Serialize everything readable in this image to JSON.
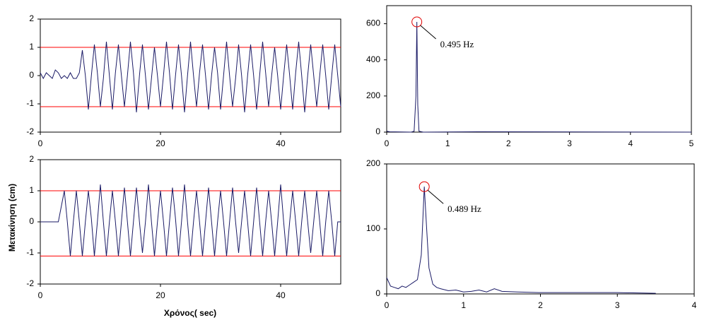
{
  "figure": {
    "ylabel": "Μετακίνηση (cm)",
    "xlabel": "Χρόνος( sec)"
  },
  "chart_data": [
    {
      "type": "line",
      "xlim": [
        0,
        50
      ],
      "ylim": [
        -2,
        2
      ],
      "xticks": [
        0,
        20,
        40
      ],
      "yticks": [
        2,
        1,
        0,
        -1,
        -2
      ],
      "hlines": [
        1,
        -1.1
      ],
      "hline_color": "#ff0000",
      "x": [
        0,
        0.5,
        1,
        1.5,
        2,
        2.5,
        3,
        3.5,
        4,
        4.5,
        5,
        5.5,
        6,
        6.5,
        7,
        7.5,
        8,
        8.5,
        9,
        9.5,
        10,
        10.5,
        11,
        11.5,
        12,
        12.5,
        13,
        13.5,
        14,
        14.5,
        15,
        15.5,
        16,
        16.5,
        17,
        17.5,
        18,
        18.5,
        19,
        19.5,
        20,
        20.5,
        21,
        21.5,
        22,
        22.5,
        23,
        23.5,
        24,
        24.5,
        25,
        25.5,
        26,
        26.5,
        27,
        27.5,
        28,
        28.5,
        29,
        29.5,
        30,
        30.5,
        31,
        31.5,
        32,
        32.5,
        33,
        33.5,
        34,
        34.5,
        35,
        35.5,
        36,
        36.5,
        37,
        37.5,
        38,
        38.5,
        39,
        39.5,
        40,
        40.5,
        41,
        41.5,
        42,
        42.5,
        43,
        43.5,
        44,
        44.5,
        45,
        45.5,
        46,
        46.5,
        47,
        47.5,
        48,
        48.5,
        49,
        49.5,
        50
      ],
      "series": [
        {
          "color": "#1a1a66",
          "values": [
            0.1,
            -0.1,
            0.1,
            0,
            -0.1,
            0.2,
            0.1,
            -0.1,
            0,
            -0.1,
            0.1,
            -0.1,
            -0.1,
            0.1,
            0.9,
            0,
            -1.2,
            0,
            1.1,
            0.1,
            -1.1,
            -0.1,
            1.2,
            0,
            -1.2,
            0.1,
            1.1,
            0,
            -1.1,
            0,
            1.2,
            0.1,
            -1.3,
            0,
            1.1,
            0,
            -1.2,
            -0.1,
            1.0,
            0,
            -1.1,
            0,
            1.2,
            0.1,
            -1.2,
            0,
            1.1,
            0,
            -1.3,
            0,
            1.2,
            0,
            -1.1,
            0.1,
            1.1,
            0,
            -1.2,
            0,
            1.0,
            0.1,
            -1.2,
            0,
            1.2,
            0,
            -1.1,
            -0.1,
            1.1,
            0,
            -1.3,
            0,
            1.1,
            0,
            -1.2,
            0,
            1.2,
            0.1,
            -1.1,
            0,
            1.0,
            0,
            -1.2,
            0,
            1.1,
            0,
            -1.2,
            0.1,
            1.2,
            0,
            -1.3,
            0,
            1.1,
            0,
            -1.1,
            0,
            1.1,
            0,
            -1.2,
            0,
            1.1,
            0,
            -1.1
          ]
        }
      ]
    },
    {
      "type": "line",
      "xlim": [
        0,
        5
      ],
      "ylim": [
        0,
        700
      ],
      "xticks": [
        0,
        1,
        2,
        3,
        4,
        5
      ],
      "yticks": [
        0,
        200,
        400,
        600
      ],
      "x": [
        0,
        0.05,
        0.4,
        0.45,
        0.48,
        0.495,
        0.51,
        0.53,
        0.6,
        1.5,
        5
      ],
      "series": [
        {
          "color": "#1a1a66",
          "values": [
            5,
            2,
            0,
            5,
            200,
            610,
            150,
            5,
            0,
            2,
            0
          ]
        }
      ],
      "annotations": [
        {
          "text": "0.495 Hz",
          "x": 0.495,
          "y": 610
        }
      ]
    },
    {
      "type": "line",
      "xlim": [
        0,
        50
      ],
      "ylim": [
        -2,
        2
      ],
      "xticks": [
        0,
        20,
        40
      ],
      "yticks": [
        2,
        1,
        0,
        -1,
        -2
      ],
      "hlines": [
        1,
        -1.1
      ],
      "hline_color": "#ff0000",
      "x": [
        0,
        0.5,
        1,
        1.5,
        2,
        2.5,
        3,
        3.5,
        4,
        4.5,
        5,
        5.5,
        6,
        6.5,
        7,
        7.5,
        8,
        8.5,
        9,
        9.5,
        10,
        10.5,
        11,
        11.5,
        12,
        12.5,
        13,
        13.5,
        14,
        14.5,
        15,
        15.5,
        16,
        16.5,
        17,
        17.5,
        18,
        18.5,
        19,
        19.5,
        20,
        20.5,
        21,
        21.5,
        22,
        22.5,
        23,
        23.5,
        24,
        24.5,
        25,
        25.5,
        26,
        26.5,
        27,
        27.5,
        28,
        28.5,
        29,
        29.5,
        30,
        30.5,
        31,
        31.5,
        32,
        32.5,
        33,
        33.5,
        34,
        34.5,
        35,
        35.5,
        36,
        36.5,
        37,
        37.5,
        38,
        38.5,
        39,
        39.5,
        40,
        40.5,
        41,
        41.5,
        42,
        42.5,
        43,
        43.5,
        44,
        44.5,
        45,
        45.5,
        46,
        46.5,
        47,
        47.5,
        48,
        48.5,
        49,
        49.5,
        50
      ],
      "series": [
        {
          "color": "#1a1a66",
          "values": [
            0,
            0,
            0,
            0,
            0,
            0,
            0,
            0.5,
            1.0,
            0,
            -1.1,
            0,
            1.0,
            0,
            -1.1,
            0,
            1.0,
            0.1,
            -1.1,
            0,
            1.2,
            0,
            -1.1,
            0,
            1.0,
            0,
            -1.1,
            0,
            1.1,
            0,
            -1.1,
            0,
            1.1,
            0,
            -1.0,
            0,
            1.2,
            0,
            -1.1,
            0,
            1.0,
            0,
            -1.1,
            0,
            1.1,
            0.1,
            -1.1,
            0,
            1.2,
            0,
            -1.1,
            0,
            1.0,
            0,
            -1.1,
            0,
            1.1,
            0,
            -1.1,
            0,
            1.0,
            0,
            -1.1,
            0,
            1.1,
            0,
            -1.0,
            0,
            1.0,
            0,
            -1.1,
            0,
            1.1,
            0,
            -1.1,
            0,
            1.0,
            0,
            -1.1,
            0,
            1.2,
            0,
            -1.1,
            0,
            1.0,
            0,
            -1.1,
            0,
            1.0,
            0,
            -1.0,
            0,
            1.0,
            0,
            -1.1,
            0,
            1.0,
            0,
            -1.1,
            0,
            0
          ]
        }
      ]
    },
    {
      "type": "line",
      "xlim": [
        0,
        4
      ],
      "ylim": [
        0,
        200
      ],
      "xticks": [
        0,
        1,
        2,
        3,
        4
      ],
      "yticks": [
        0,
        100,
        200
      ],
      "x": [
        0,
        0.05,
        0.1,
        0.15,
        0.2,
        0.25,
        0.3,
        0.35,
        0.4,
        0.45,
        0.489,
        0.52,
        0.55,
        0.6,
        0.65,
        0.7,
        0.8,
        0.9,
        1.0,
        1.1,
        1.2,
        1.3,
        1.4,
        1.5,
        1.7,
        2.0,
        2.5,
        3.0,
        3.5
      ],
      "series": [
        {
          "color": "#1a1a66",
          "values": [
            25,
            12,
            10,
            8,
            12,
            10,
            14,
            18,
            22,
            60,
            165,
            100,
            40,
            15,
            10,
            8,
            5,
            6,
            3,
            4,
            6,
            3,
            8,
            4,
            3,
            2,
            2,
            2,
            1
          ]
        }
      ],
      "annotations": [
        {
          "text": "0.489 Hz",
          "x": 0.489,
          "y": 165
        }
      ]
    }
  ]
}
